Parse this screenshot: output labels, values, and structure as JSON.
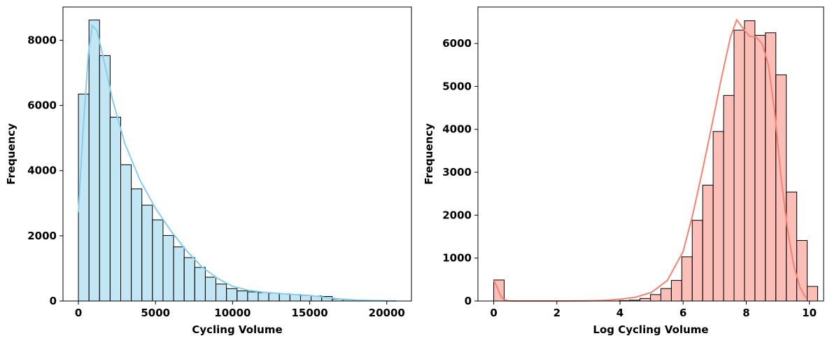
{
  "chart_data": [
    {
      "type": "bar",
      "subtype": "histogram",
      "xlabel": "Cycling Volume",
      "ylabel": "Frequency",
      "xlim": [
        -1000,
        21600
      ],
      "ylim": [
        0,
        9020
      ],
      "bar_color": "#87ceeb",
      "kde_color": "#87ceeb",
      "edge_color": "#000000",
      "bin_width": 686,
      "bins_start": 0,
      "counts": [
        6350,
        8620,
        7530,
        5640,
        4180,
        3440,
        2940,
        2490,
        2010,
        1660,
        1330,
        1030,
        730,
        520,
        380,
        310,
        280,
        260,
        240,
        220,
        200,
        170,
        150,
        140,
        60,
        40,
        30,
        20,
        10,
        10
      ],
      "kde": [
        [
          0,
          2720
        ],
        [
          300,
          5200
        ],
        [
          650,
          7600
        ],
        [
          900,
          8450
        ],
        [
          1200,
          8300
        ],
        [
          1600,
          7500
        ],
        [
          2200,
          6200
        ],
        [
          3000,
          4850
        ],
        [
          4000,
          3700
        ],
        [
          5000,
          2850
        ],
        [
          6000,
          2150
        ],
        [
          7000,
          1550
        ],
        [
          8000,
          1050
        ],
        [
          9000,
          700
        ],
        [
          10000,
          450
        ],
        [
          11000,
          330
        ],
        [
          12000,
          270
        ],
        [
          13000,
          230
        ],
        [
          14000,
          200
        ],
        [
          15000,
          170
        ],
        [
          16000,
          110
        ],
        [
          17000,
          60
        ],
        [
          18000,
          30
        ],
        [
          19000,
          12
        ],
        [
          20000,
          5
        ],
        [
          20600,
          2
        ]
      ],
      "xticks": [
        0,
        5000,
        10000,
        15000,
        20000
      ],
      "xtick_labels": [
        "0",
        "5000",
        "10000",
        "15000",
        "20000"
      ],
      "yticks": [
        0,
        2000,
        4000,
        6000,
        8000
      ],
      "ytick_labels": [
        "0",
        "2000",
        "4000",
        "6000",
        "8000"
      ]
    },
    {
      "type": "bar",
      "subtype": "histogram",
      "xlabel": "Log Cycling Volume",
      "ylabel": "Frequency",
      "xlim": [
        -0.5,
        10.45
      ],
      "ylim": [
        0,
        6850
      ],
      "bar_color": "#fa8072",
      "kde_color": "#fa8072",
      "edge_color": "#000000",
      "bin_width": 0.331,
      "bins_start": 0,
      "counts": [
        490,
        0,
        0,
        0,
        0,
        0,
        0,
        0,
        0,
        0,
        0,
        0,
        10,
        20,
        60,
        150,
        290,
        480,
        1030,
        1880,
        2700,
        3950,
        4790,
        6310,
        6530,
        6190,
        6250,
        5270,
        2540,
        1410,
        340
      ],
      "kde": [
        [
          0.0,
          480
        ],
        [
          0.1,
          330
        ],
        [
          0.2,
          150
        ],
        [
          0.3,
          40
        ],
        [
          0.45,
          5
        ],
        [
          0.7,
          0
        ],
        [
          2.0,
          0
        ],
        [
          3.0,
          5
        ],
        [
          3.5,
          15
        ],
        [
          4.0,
          40
        ],
        [
          4.5,
          90
        ],
        [
          5.0,
          200
        ],
        [
          5.5,
          480
        ],
        [
          6.0,
          1150
        ],
        [
          6.3,
          2000
        ],
        [
          6.6,
          3000
        ],
        [
          6.9,
          4050
        ],
        [
          7.2,
          5150
        ],
        [
          7.5,
          6150
        ],
        [
          7.7,
          6550
        ],
        [
          7.9,
          6350
        ],
        [
          8.1,
          6170
        ],
        [
          8.3,
          6150
        ],
        [
          8.5,
          6000
        ],
        [
          8.7,
          5500
        ],
        [
          8.9,
          4400
        ],
        [
          9.1,
          2900
        ],
        [
          9.3,
          1700
        ],
        [
          9.5,
          850
        ],
        [
          9.7,
          320
        ],
        [
          9.9,
          60
        ]
      ],
      "xticks": [
        0,
        2,
        4,
        6,
        8,
        10
      ],
      "xtick_labels": [
        "0",
        "2",
        "4",
        "6",
        "8",
        "10"
      ],
      "yticks": [
        0,
        1000,
        2000,
        3000,
        4000,
        5000,
        6000
      ],
      "ytick_labels": [
        "0",
        "1000",
        "2000",
        "3000",
        "4000",
        "5000",
        "6000"
      ]
    }
  ]
}
